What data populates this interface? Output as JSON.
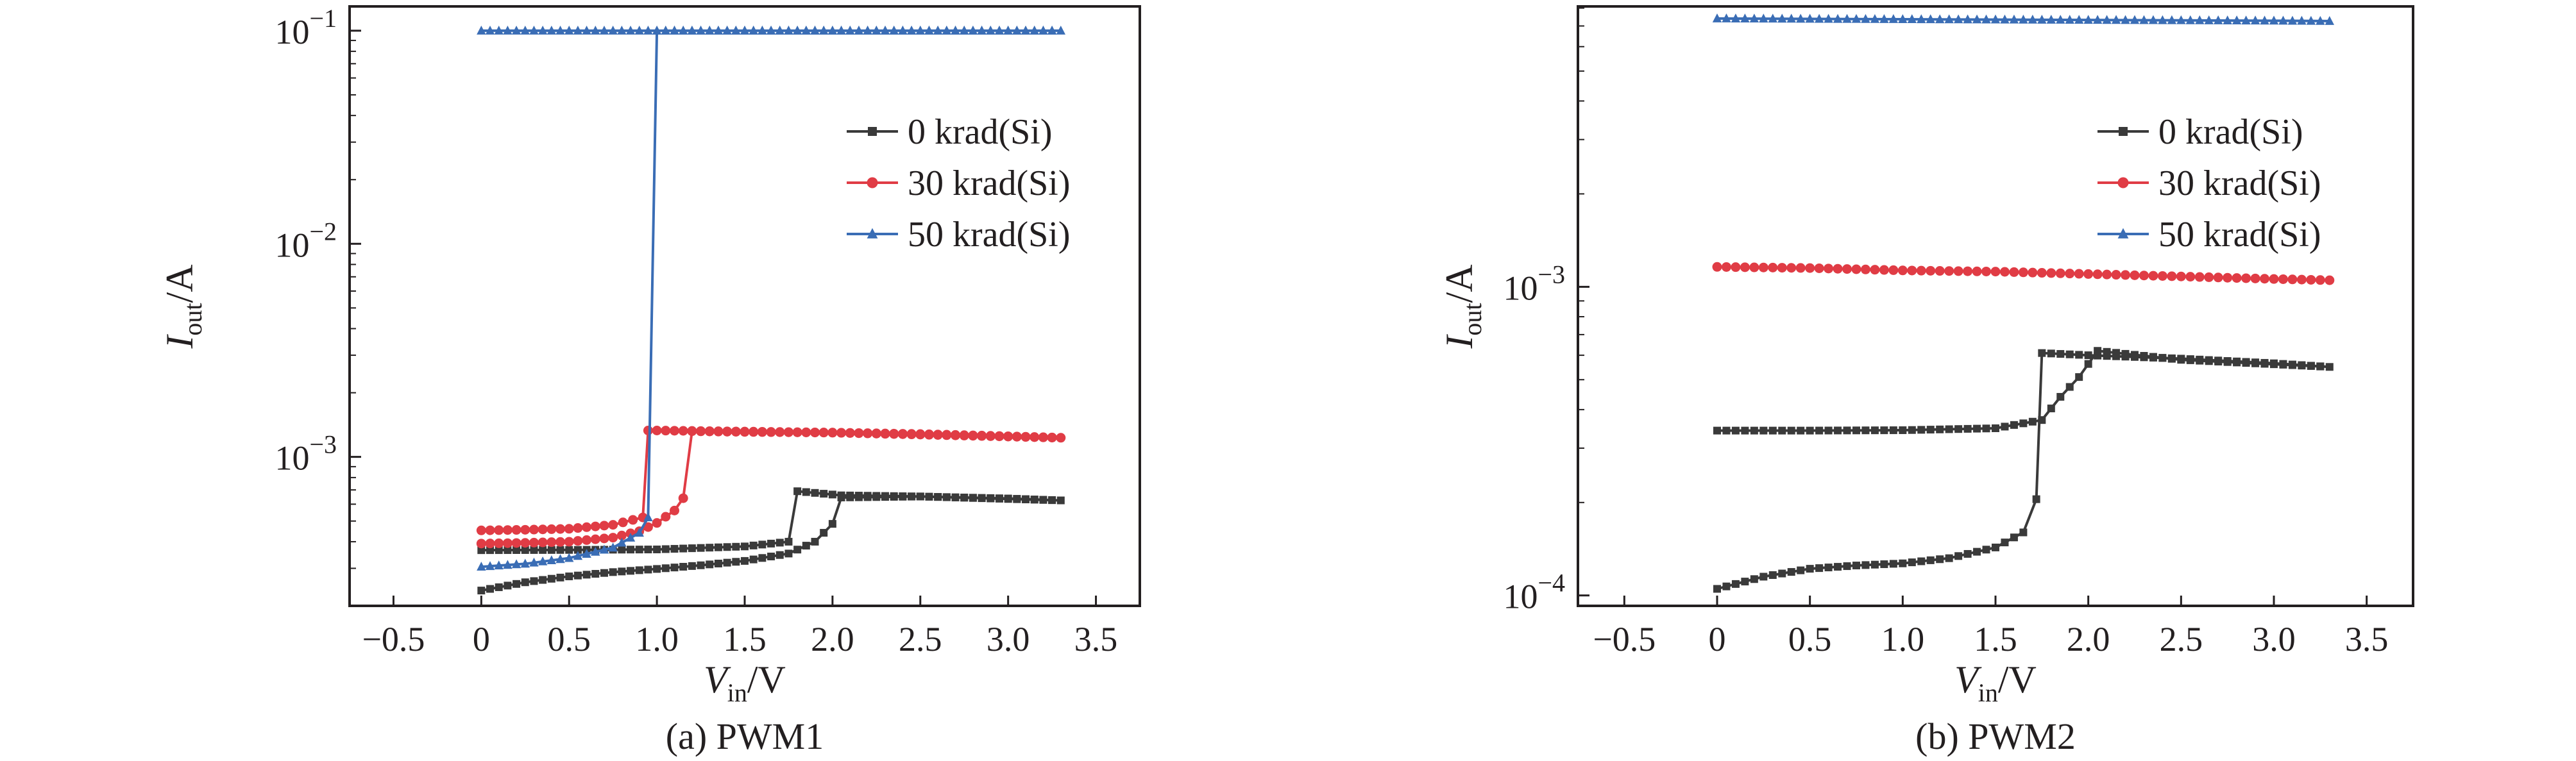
{
  "chart_data": [
    {
      "type": "line",
      "caption": "(a) PWM1",
      "xlabel_main": "V",
      "xlabel_sub": "in",
      "xlabel_unit": "/V",
      "ylabel_main": "I",
      "ylabel_sub": "out",
      "ylabel_unit": "/A",
      "xlim": [
        -0.75,
        3.75
      ],
      "ylim": [
        0.0002,
        0.13
      ],
      "yscale": "log",
      "xticks": [
        "−0.5",
        "0",
        "0.5",
        "1.0",
        "1.5",
        "2.0",
        "2.5",
        "3.0",
        "3.5"
      ],
      "xtick_values": [
        -0.5,
        0,
        0.5,
        1.0,
        1.5,
        2.0,
        2.5,
        3.0,
        3.5
      ],
      "yticks": [
        {
          "base": "10",
          "exp": "−1",
          "value": 0.1
        },
        {
          "base": "10",
          "exp": "−2",
          "value": 0.01
        },
        {
          "base": "10",
          "exp": "−3",
          "value": 0.001
        }
      ],
      "legend_position": "top-right",
      "series": [
        {
          "name": "0 krad(Si)",
          "color": "#3a3a3a",
          "marker": "square",
          "points": [
            [
              0,
              0.000236
            ],
            [
              0.25,
              0.000258
            ],
            [
              0.5,
              0.000275
            ],
            [
              0.75,
              0.000288
            ],
            [
              1.0,
              0.000298
            ],
            [
              1.25,
              0.00031
            ],
            [
              1.5,
              0.000325
            ],
            [
              1.75,
              0.000352
            ],
            [
              1.9,
              0.0004
            ],
            [
              2.0,
              0.000485
            ],
            [
              2.05,
              0.000645
            ],
            [
              2.5,
              0.000652
            ],
            [
              3.0,
              0.000638
            ],
            [
              3.3,
              0.000625
            ],
            [
              2.5,
              0.000652
            ],
            [
              2.05,
              0.00066
            ],
            [
              1.8,
              0.00069
            ],
            [
              1.75,
              0.0004
            ],
            [
              1.5,
              0.00038
            ],
            [
              1.0,
              0.000368
            ],
            [
              0.5,
              0.000366
            ],
            [
              0,
              0.000365
            ]
          ]
        },
        {
          "name": "30 krad(Si)",
          "color": "#e03c45",
          "marker": "circle",
          "points": [
            [
              0,
              0.000392
            ],
            [
              0.25,
              0.000395
            ],
            [
              0.5,
              0.0004
            ],
            [
              0.75,
              0.000418
            ],
            [
              0.9,
              0.000448
            ],
            [
              1.0,
              0.00049
            ],
            [
              1.1,
              0.00056
            ],
            [
              1.15,
              0.00064
            ],
            [
              1.2,
              0.00132
            ],
            [
              1.5,
              0.00131
            ],
            [
              2.0,
              0.0013
            ],
            [
              2.5,
              0.00128
            ],
            [
              3.0,
              0.00125
            ],
            [
              3.3,
              0.00123
            ],
            [
              2.0,
              0.0013
            ],
            [
              1.0,
              0.00133
            ],
            [
              0.95,
              0.00133
            ],
            [
              0.92,
              0.00052
            ],
            [
              0.75,
              0.00048
            ],
            [
              0.5,
              0.00046
            ],
            [
              0.25,
              0.000455
            ],
            [
              0,
              0.000452
            ]
          ]
        },
        {
          "name": "50 krad(Si)",
          "color": "#3a6db5",
          "marker": "triangle",
          "points": [
            [
              0,
              0.000305
            ],
            [
              0.25,
              0.000315
            ],
            [
              0.5,
              0.000335
            ],
            [
              0.75,
              0.000375
            ],
            [
              0.9,
              0.00044
            ],
            [
              0.95,
              0.00052
            ],
            [
              1.0,
              0.1
            ],
            [
              1.5,
              0.1
            ],
            [
              2.0,
              0.1
            ],
            [
              2.5,
              0.1
            ],
            [
              3.0,
              0.1
            ],
            [
              3.3,
              0.1
            ],
            [
              0,
              0.1
            ]
          ]
        }
      ]
    },
    {
      "type": "line",
      "caption": "(b) PWM2",
      "xlabel_main": "V",
      "xlabel_sub": "in",
      "xlabel_unit": "/V",
      "ylabel_main": "I",
      "ylabel_sub": "out",
      "ylabel_unit": "/A",
      "xlim": [
        -0.75,
        3.75
      ],
      "ylim": [
        9.25e-05,
        0.0081
      ],
      "yscale": "log",
      "xticks": [
        "−0.5",
        "0",
        "0.5",
        "1.0",
        "1.5",
        "2.0",
        "2.5",
        "3.0",
        "3.5"
      ],
      "xtick_values": [
        -0.5,
        0,
        0.5,
        1.0,
        1.5,
        2.0,
        2.5,
        3.0,
        3.5
      ],
      "yticks": [
        {
          "base": "10",
          "exp": "−3",
          "value": 0.001
        },
        {
          "base": "10",
          "exp": "−4",
          "value": 0.0001
        }
      ],
      "legend_position": "top-right",
      "series": [
        {
          "name": "0 krad(Si)",
          "color": "#3a3a3a",
          "marker": "square",
          "points": [
            [
              0,
              0.000105
            ],
            [
              0.25,
              0.000115
            ],
            [
              0.5,
              0.000122
            ],
            [
              0.75,
              0.000125
            ],
            [
              1.0,
              0.000127
            ],
            [
              1.25,
              0.000132
            ],
            [
              1.5,
              0.000143
            ],
            [
              1.65,
              0.00016
            ],
            [
              1.72,
              0.000205
            ],
            [
              1.75,
              0.00061
            ],
            [
              2.0,
              0.0006
            ],
            [
              2.5,
              0.000585
            ],
            [
              3.0,
              0.000565
            ],
            [
              3.3,
              0.00055
            ],
            [
              2.5,
              0.00058
            ],
            [
              2.05,
              0.00062
            ],
            [
              1.95,
              0.00051
            ],
            [
              1.85,
              0.00044
            ],
            [
              1.75,
              0.00037
            ],
            [
              1.5,
              0.000348
            ],
            [
              1.0,
              0.000343
            ],
            [
              0.5,
              0.000342
            ],
            [
              0,
              0.000342
            ]
          ]
        },
        {
          "name": "30 krad(Si)",
          "color": "#e03c45",
          "marker": "circle",
          "points": [
            [
              0,
              0.00116
            ],
            [
              0.5,
              0.00115
            ],
            [
              1.0,
              0.00113
            ],
            [
              1.5,
              0.00112
            ],
            [
              2.0,
              0.0011
            ],
            [
              2.5,
              0.00108
            ],
            [
              3.0,
              0.00106
            ],
            [
              3.3,
              0.00105
            ]
          ]
        },
        {
          "name": "50 krad(Si)",
          "color": "#3a6db5",
          "marker": "triangle",
          "points": [
            [
              0,
              0.0074
            ],
            [
              0.5,
              0.00738
            ],
            [
              1.0,
              0.00736
            ],
            [
              1.5,
              0.00734
            ],
            [
              2.0,
              0.00732
            ],
            [
              2.5,
              0.0073
            ],
            [
              3.0,
              0.00728
            ],
            [
              3.3,
              0.00726
            ]
          ]
        }
      ]
    }
  ]
}
